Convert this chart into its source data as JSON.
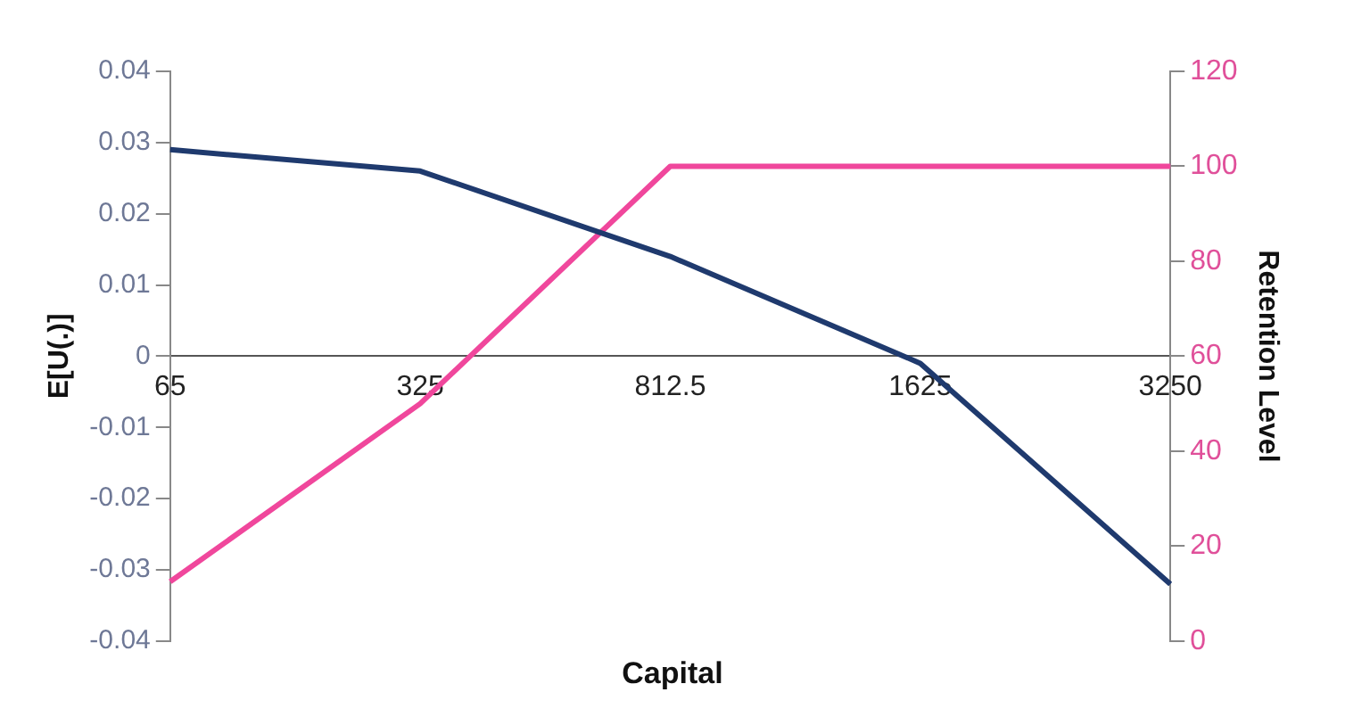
{
  "chart_data": {
    "type": "line",
    "xlabel": "Capital",
    "ylabel": "E[U(.)]",
    "y2label": "Retention Level",
    "categories": [
      "65",
      "325",
      "812.5",
      "1625",
      "3250"
    ],
    "series": [
      {
        "color": "#1f3a6e",
        "values": [
          0.029,
          0.026,
          0.014,
          -0.001,
          -0.032
        ]
      },
      {
        "color": "#f0479c",
        "values": [
          12.5,
          50,
          100,
          100,
          100
        ],
        "axis": "y2"
      }
    ],
    "ylim": [
      -0.04,
      0.04
    ],
    "yticks": [
      -0.04,
      -0.03,
      -0.02,
      -0.01,
      0,
      0.01,
      0.02,
      0.03,
      0.04
    ],
    "y2lim": [
      0,
      120
    ],
    "y2ticks": [
      0,
      20,
      40,
      60,
      80,
      100,
      120
    ],
    "grid": false,
    "legend": false,
    "marker": "none",
    "line_style": "solid"
  }
}
